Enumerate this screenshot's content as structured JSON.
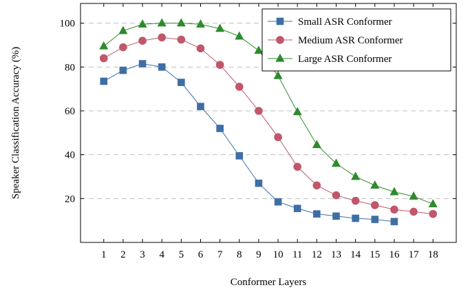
{
  "chart_data": {
    "type": "line",
    "xlabel": "Conformer Layers",
    "ylabel": "Speaker Classification Accuracy (%)",
    "xlim": [
      -0.2,
      19.2
    ],
    "ylim": [
      0,
      109
    ],
    "x_ticks": [
      1,
      2,
      3,
      4,
      5,
      6,
      7,
      8,
      9,
      10,
      11,
      12,
      13,
      14,
      15,
      16,
      17,
      18
    ],
    "y_ticks": [
      20,
      40,
      60,
      80,
      100
    ],
    "grid": "horizontal dashed",
    "legend_position": "top-right",
    "series": [
      {
        "name": "Small ASR Conformer",
        "color": "#3f6ea5",
        "marker": "square",
        "x": [
          1,
          2,
          3,
          4,
          5,
          6,
          7,
          8,
          9,
          10,
          11,
          12,
          13,
          14,
          15,
          16
        ],
        "y": [
          73.5,
          78.5,
          81.5,
          80,
          73,
          62,
          52,
          39.5,
          27,
          18.5,
          15.5,
          13,
          12,
          11,
          10.5,
          9.5
        ]
      },
      {
        "name": "Medium ASR Conformer",
        "color": "#c0576a",
        "marker": "circle",
        "x": [
          1,
          2,
          3,
          4,
          5,
          6,
          7,
          8,
          9,
          10,
          11,
          12,
          13,
          14,
          15,
          16,
          17,
          18
        ],
        "y": [
          84,
          89,
          92,
          93.5,
          92.5,
          88.5,
          81,
          71,
          60,
          48,
          34.5,
          26,
          21.5,
          19,
          17,
          15,
          14,
          13
        ]
      },
      {
        "name": "Large ASR Conformer",
        "color": "#2e8b2e",
        "marker": "triangle",
        "x": [
          1,
          2,
          3,
          4,
          5,
          6,
          7,
          8,
          9,
          10,
          11,
          12,
          13,
          14,
          15,
          16,
          17,
          18
        ],
        "y": [
          89.5,
          96.5,
          99.5,
          100,
          100,
          99.5,
          97.5,
          94,
          87.5,
          76,
          59.5,
          44.5,
          36,
          30,
          26,
          23,
          21,
          17.5
        ]
      }
    ]
  }
}
